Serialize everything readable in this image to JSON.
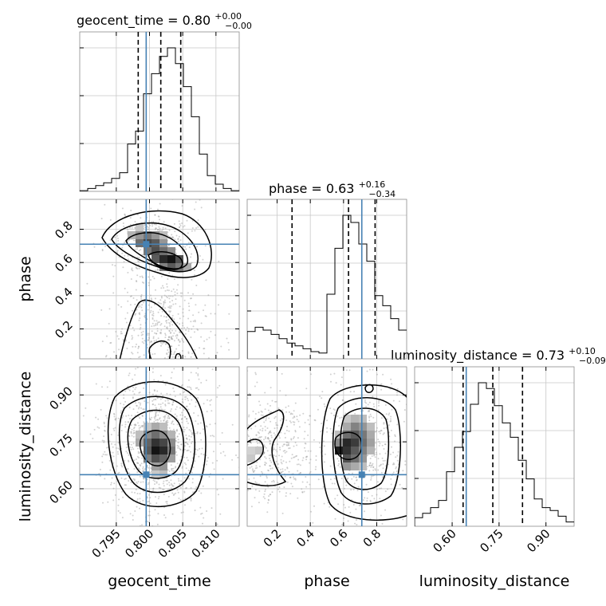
{
  "chart_data": {
    "type": "corner",
    "parameters": [
      {
        "name": "geocent_time",
        "range": [
          0.7895,
          0.8135
        ],
        "ticks": [
          0.795,
          0.8,
          0.805,
          0.81
        ],
        "tick_labels": [
          "0.795",
          "0.800",
          "0.805",
          "0.810"
        ],
        "truth": 0.7995,
        "quantiles": [
          0.7983,
          0.8017,
          0.8047
        ]
      },
      {
        "name": "phase",
        "range": [
          0.02,
          0.98
        ],
        "ticks": [
          0.2,
          0.4,
          0.6,
          0.8
        ],
        "tick_labels": [
          "0.2",
          "0.4",
          "0.6",
          "0.8"
        ],
        "truth": 0.71,
        "quantiles": [
          0.29,
          0.63,
          0.79
        ]
      },
      {
        "name": "luminosity_distance",
        "range": [
          0.48,
          0.99
        ],
        "ticks": [
          0.6,
          0.75,
          0.9
        ],
        "tick_labels": [
          "0.60",
          "0.75",
          "0.90"
        ],
        "truth": 0.645,
        "quantiles": [
          0.635,
          0.73,
          0.825
        ]
      }
    ],
    "titles": [
      {
        "text": "geocent_time = 0.80",
        "upper": "+0.00",
        "lower": "−0.00"
      },
      {
        "text": "phase = 0.63",
        "upper": "+0.16",
        "lower": "−0.34"
      },
      {
        "text": "luminosity_distance = 0.73",
        "upper": "+0.10",
        "lower": "−0.09"
      }
    ],
    "histograms": [
      {
        "param": "geocent_time",
        "edges_start": 0.7895,
        "bin_width": 0.0012,
        "counts": [
          0.5,
          2,
          4,
          6,
          9,
          13,
          33,
          42,
          68,
          82,
          94,
          100,
          89,
          73,
          52,
          26,
          11,
          5,
          2,
          0.5
        ]
      },
      {
        "param": "phase",
        "edges_start": 0.02,
        "bin_width": 0.048,
        "counts": [
          19,
          22,
          20,
          17,
          14,
          11,
          9,
          7,
          5,
          4,
          45,
          77,
          100,
          95,
          80,
          68,
          44,
          37,
          28,
          20
        ]
      },
      {
        "param": "luminosity_distance",
        "edges_start": 0.48,
        "bin_width": 0.0255,
        "counts": [
          6,
          9,
          13,
          18,
          38,
          55,
          66,
          85,
          100,
          96,
          84,
          72,
          62,
          46,
          33,
          19,
          13,
          11,
          7,
          3
        ]
      }
    ],
    "truth_color": "#4682b4",
    "quantile_style": "dashed",
    "grid": true,
    "legend": "none"
  }
}
